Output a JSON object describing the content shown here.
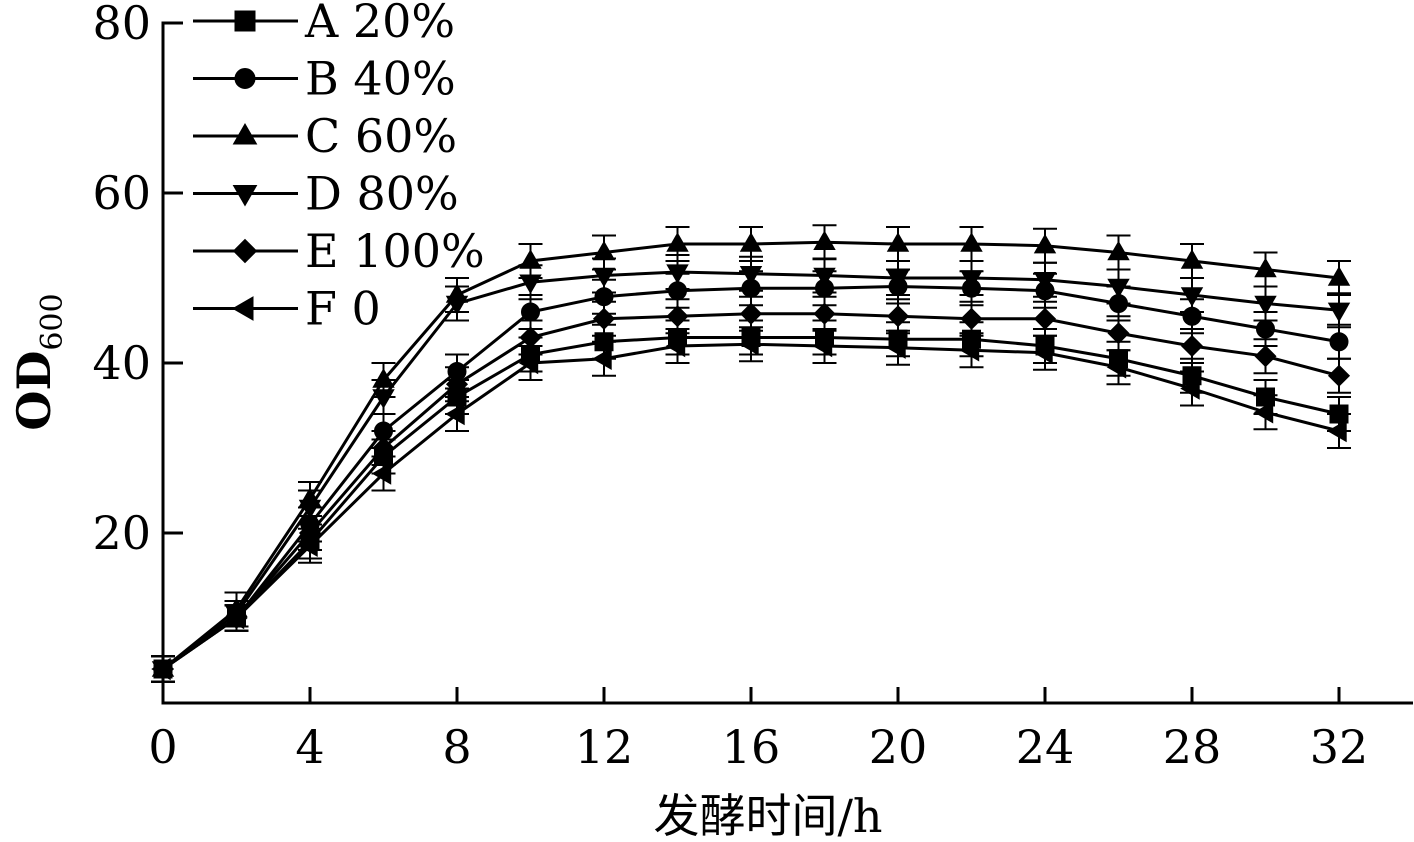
{
  "chart_data": {
    "type": "line",
    "title": "",
    "xlabel": "发酵时间/h",
    "ylabel": "OD",
    "ylabel_sub": "600",
    "xlim": [
      0,
      34
    ],
    "ylim": [
      0,
      80
    ],
    "x_ticks": [
      0,
      4,
      8,
      12,
      16,
      20,
      24,
      28,
      32
    ],
    "y_ticks": [
      20,
      40,
      60,
      80
    ],
    "grid": false,
    "legend_position": "top-left",
    "x": [
      0,
      2,
      4,
      6,
      8,
      10,
      12,
      14,
      16,
      18,
      20,
      22,
      24,
      26,
      28,
      30,
      32
    ],
    "series": [
      {
        "name": "A 20%",
        "marker": "square",
        "values": [
          4,
          10,
          19,
          29,
          36,
          41,
          42.5,
          43,
          43,
          43,
          42.8,
          42.8,
          42,
          40.5,
          38.5,
          36,
          34
        ],
        "error": [
          1.5,
          1.5,
          2,
          2,
          2,
          2,
          2,
          2,
          2,
          2,
          2,
          2,
          2,
          2,
          2,
          2,
          2
        ]
      },
      {
        "name": "B 40%",
        "marker": "circle",
        "values": [
          4,
          10,
          21,
          32,
          39,
          46,
          47.8,
          48.5,
          48.8,
          48.8,
          49,
          48.8,
          48.5,
          47,
          45.5,
          44,
          42.5
        ],
        "error": [
          1.5,
          1.5,
          2,
          2,
          2,
          2,
          2,
          2,
          2,
          2,
          2,
          2,
          2,
          2,
          2,
          2,
          2
        ]
      },
      {
        "name": "C 60%",
        "marker": "triangle-up",
        "values": [
          4,
          11,
          24,
          38,
          48,
          52,
          53,
          54,
          54,
          54.2,
          54,
          54,
          53.8,
          53,
          52,
          51,
          50
        ],
        "error": [
          1.5,
          2,
          2,
          2,
          2,
          2,
          2,
          2,
          2,
          2,
          2,
          2,
          2,
          2,
          2,
          2,
          2
        ]
      },
      {
        "name": "D 80%",
        "marker": "triangle-down",
        "values": [
          4,
          10.5,
          23,
          36,
          47,
          49.5,
          50.3,
          50.7,
          50.5,
          50.3,
          50,
          50,
          49.8,
          49,
          48,
          47,
          46.2
        ],
        "error": [
          1.5,
          1.5,
          2,
          2,
          2,
          2,
          2,
          2,
          2,
          2,
          2,
          2,
          2,
          2,
          2,
          2,
          2
        ]
      },
      {
        "name": "E 100%",
        "marker": "diamond",
        "values": [
          4,
          10,
          20,
          30,
          37.5,
          43,
          45.2,
          45.5,
          45.8,
          45.8,
          45.5,
          45.2,
          45.2,
          43.5,
          42,
          40.8,
          38.5
        ],
        "error": [
          1.5,
          1.5,
          2,
          2,
          2,
          2,
          2,
          2,
          2,
          2,
          2,
          2,
          2,
          2,
          2,
          2,
          2
        ]
      },
      {
        "name": "F 0",
        "marker": "triangle-left",
        "values": [
          4,
          10,
          18.5,
          27,
          34,
          40,
          40.5,
          42,
          42.2,
          42,
          41.8,
          41.5,
          41.2,
          39.5,
          37,
          34.2,
          32
        ],
        "error": [
          1.5,
          1.5,
          2,
          2,
          2,
          2,
          2,
          2,
          2,
          2,
          2,
          2,
          2,
          2,
          2,
          2,
          2
        ]
      }
    ]
  }
}
